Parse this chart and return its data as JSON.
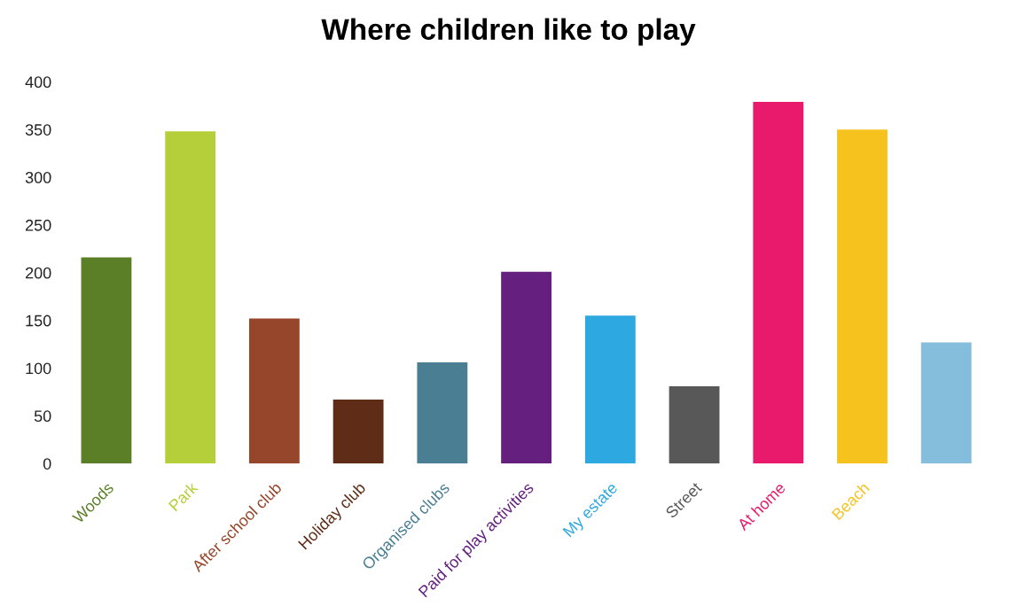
{
  "chart_data": {
    "type": "bar",
    "title": "Where children like to play",
    "categories": [
      "Woods",
      "Park",
      "After school club",
      "Holiday club",
      "Organised clubs",
      "Paid for play activities",
      "My estate",
      "Street",
      "At home",
      "Beach",
      null
    ],
    "values": [
      216,
      348,
      152,
      67,
      106,
      201,
      155,
      81,
      379,
      350,
      127
    ],
    "colors": [
      "#5a7f27",
      "#b5cf3a",
      "#96462a",
      "#5f2d17",
      "#4a7e93",
      "#65207f",
      "#2ea8e0",
      "#585858",
      "#e91a6c",
      "#f6c31e",
      "#85bedc"
    ],
    "ylim": [
      0,
      400
    ],
    "yticks": [
      0,
      50,
      100,
      150,
      200,
      250,
      300,
      350,
      400
    ],
    "grid": false
  }
}
